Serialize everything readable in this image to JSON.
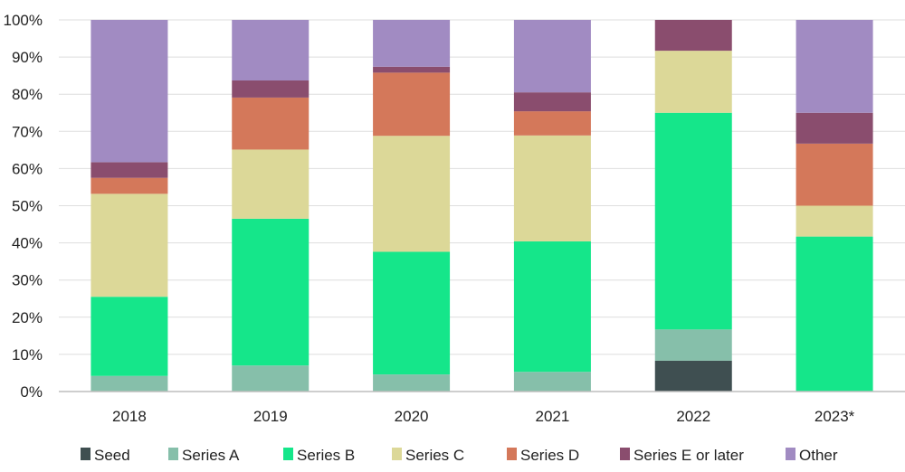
{
  "chart_data": {
    "type": "bar",
    "stacked": true,
    "title": "",
    "xlabel": "",
    "ylabel": "",
    "ylim": [
      0,
      100
    ],
    "yticks": [
      0,
      10,
      20,
      30,
      40,
      50,
      60,
      70,
      80,
      90,
      100
    ],
    "ytick_labels": [
      "0%",
      "10%",
      "20%",
      "30%",
      "40%",
      "50%",
      "60%",
      "70%",
      "80%",
      "90%",
      "100%"
    ],
    "grid": true,
    "legend_position": "bottom",
    "categories": [
      "2018",
      "2019",
      "2020",
      "2021",
      "2022",
      "2023*"
    ],
    "series": [
      {
        "name": "Seed",
        "color": "#3f4f51",
        "values": [
          0,
          0,
          0,
          0,
          8.3,
          0
        ]
      },
      {
        "name": "Series A",
        "color": "#86bfaa",
        "values": [
          4.2,
          7.0,
          4.6,
          5.3,
          8.4,
          0
        ]
      },
      {
        "name": "Series B",
        "color": "#15e68a",
        "values": [
          21.3,
          39.5,
          33.0,
          35.1,
          58.3,
          41.7
        ]
      },
      {
        "name": "Series C",
        "color": "#dcd898",
        "values": [
          27.7,
          18.6,
          31.2,
          28.5,
          16.7,
          8.3
        ]
      },
      {
        "name": "Series D",
        "color": "#d4785a",
        "values": [
          4.3,
          14.0,
          17.0,
          6.5,
          0,
          16.7
        ]
      },
      {
        "name": "Series E or later",
        "color": "#8a4d6e",
        "values": [
          4.2,
          4.6,
          1.6,
          5.1,
          8.3,
          8.3
        ]
      },
      {
        "name": "Other",
        "color": "#a18bc2",
        "values": [
          38.3,
          16.3,
          12.6,
          19.5,
          0,
          25.0
        ]
      }
    ]
  }
}
